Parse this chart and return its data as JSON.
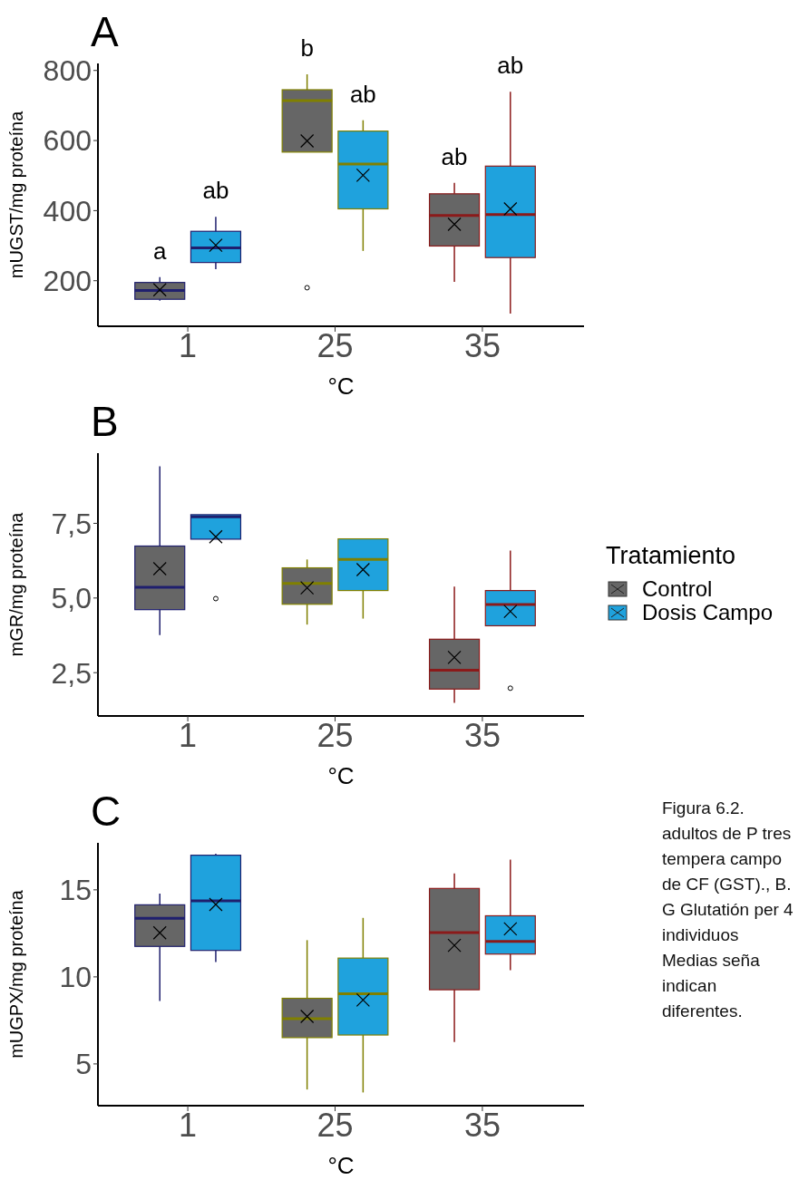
{
  "chart_data": [
    {
      "type": "box",
      "title": "A",
      "xlabel": "°C",
      "ylabel": "mUGST/mg proteína",
      "categories": [
        "1",
        "25",
        "35"
      ],
      "colors": [
        "#1f1f6e",
        "#808000",
        "#8b1a1a"
      ],
      "ylim": [
        70,
        820
      ],
      "yticks": [
        200,
        400,
        600,
        800
      ],
      "legend": false,
      "series": [
        {
          "color": "#666666",
          "boxes": [
            {
              "low": 143,
              "q1": 147,
              "median": 172,
              "q3": 195,
              "high": 210,
              "mean": 174
            },
            {
              "low": 567,
              "q1": 567,
              "median": 714,
              "q3": 745,
              "high": 789,
              "mean": 599,
              "outliers": [
                180
              ]
            },
            {
              "low": 197,
              "q1": 299,
              "median": 386,
              "q3": 448,
              "high": 479,
              "mean": 361
            }
          ]
        },
        {
          "color": "#1fa2dd",
          "boxes": [
            {
              "low": 233,
              "q1": 252,
              "median": 294,
              "q3": 341,
              "high": 382,
              "mean": 301
            },
            {
              "low": 285,
              "q1": 405,
              "median": 533,
              "q3": 627,
              "high": 658,
              "mean": 501
            },
            {
              "low": 106,
              "q1": 266,
              "median": 389,
              "q3": 527,
              "high": 739,
              "mean": 405
            }
          ]
        }
      ],
      "annotations": [
        "a",
        "ab",
        "b",
        "ab",
        "ab",
        "ab"
      ]
    },
    {
      "type": "box",
      "title": "B",
      "xlabel": "°C",
      "ylabel": "mGR/mg proteína",
      "categories": [
        "1",
        "25",
        "35"
      ],
      "colors": [
        "#1f1f6e",
        "#808000",
        "#8b1a1a"
      ],
      "ylim": [
        1.05,
        9.85
      ],
      "yticks": [
        {
          "value": 2.5,
          "label": "2,5"
        },
        {
          "value": 5,
          "label": "5,0"
        },
        {
          "value": 7.5,
          "label": "7,5"
        }
      ],
      "legend": "right",
      "legend_title": "Tratamiento",
      "series": [
        {
          "name": "Control",
          "color": "#666666",
          "boxes": [
            {
              "low": 3.76,
              "q1": 4.61,
              "median": 5.36,
              "q3": 6.74,
              "high": 9.41,
              "mean": 5.98
            },
            {
              "low": 4.11,
              "q1": 4.79,
              "median": 5.49,
              "q3": 6.01,
              "high": 6.29,
              "mean": 5.34
            },
            {
              "low": 1.49,
              "q1": 1.95,
              "median": 2.58,
              "q3": 3.62,
              "high": 5.38,
              "mean": 3.01
            }
          ]
        },
        {
          "name": "Dosis Campo",
          "color": "#1fa2dd",
          "boxes": [
            {
              "low": 6.97,
              "q1": 6.97,
              "median": 7.72,
              "q3": 7.79,
              "high": 7.79,
              "mean": 7.05,
              "outliers": [
                4.98
              ]
            },
            {
              "low": 4.31,
              "q1": 5.25,
              "median": 6.29,
              "q3": 6.98,
              "high": 6.98,
              "mean": 5.95
            },
            {
              "low": 4.07,
              "q1": 4.07,
              "median": 4.78,
              "q3": 5.25,
              "high": 6.59,
              "mean": 4.55,
              "outliers": [
                1.98
              ]
            }
          ]
        }
      ]
    },
    {
      "type": "box",
      "title": "C",
      "xlabel": "°C",
      "ylabel": "mUGPX/mg proteína",
      "categories": [
        "1",
        "25",
        "35"
      ],
      "colors": [
        "#1f1f6e",
        "#808000",
        "#8b1a1a"
      ],
      "ylim": [
        2.6,
        17.7
      ],
      "yticks": [
        5,
        10,
        15
      ],
      "legend": false,
      "series": [
        {
          "color": "#666666",
          "boxes": [
            {
              "low": 8.61,
              "q1": 11.75,
              "median": 13.36,
              "q3": 14.14,
              "high": 14.79,
              "mean": 12.53
            },
            {
              "low": 3.53,
              "q1": 6.51,
              "median": 7.6,
              "q3": 8.77,
              "high": 12.11,
              "mean": 7.73
            },
            {
              "low": 6.26,
              "q1": 9.26,
              "median": 12.55,
              "q3": 15.08,
              "high": 15.94,
              "mean": 11.81
            }
          ]
        },
        {
          "color": "#1fa2dd",
          "boxes": [
            {
              "low": 10.85,
              "q1": 11.52,
              "median": 14.37,
              "q3": 16.99,
              "high": 17.08,
              "mean": 14.16
            },
            {
              "low": 3.36,
              "q1": 6.66,
              "median": 9.03,
              "q3": 11.08,
              "high": 13.39,
              "mean": 8.67
            },
            {
              "low": 10.39,
              "q1": 11.31,
              "median": 12.04,
              "q3": 13.51,
              "high": 16.74,
              "mean": 12.76
            }
          ]
        }
      ],
      "annotations": [
        "Figura 6.2. adultos de P tres tempera campo de CF (GST)., B. G Glutatión per 4 individuos Medias seña indican diferentes."
      ]
    }
  ]
}
